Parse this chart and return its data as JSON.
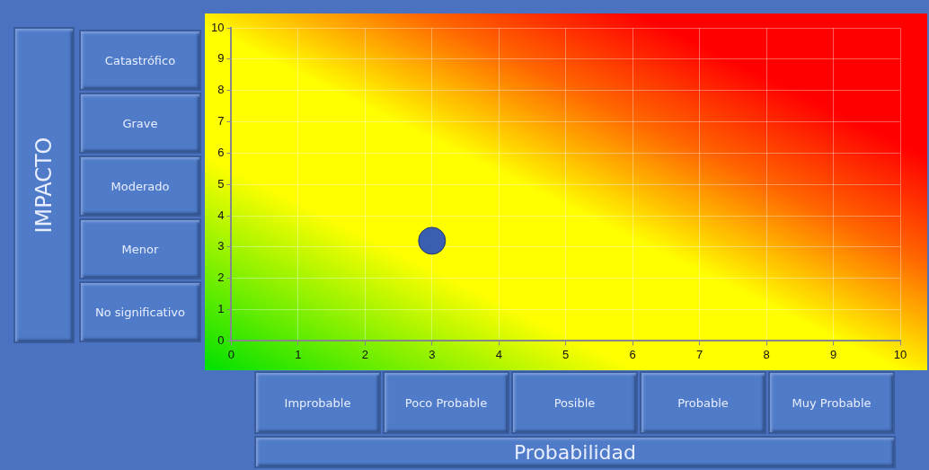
{
  "chart_data": {
    "type": "scatter",
    "xlabel": "Probabilidad",
    "x": [
      3
    ],
    "values": [
      3.2
    ],
    "color": "#3a5fb0",
    "marker": "circle",
    "xlim": [
      0,
      10
    ],
    "xticks": [
      0,
      1,
      2,
      3,
      4,
      5,
      6,
      7,
      8,
      9,
      10
    ],
    "ylim": [
      0,
      10
    ],
    "yticks": [
      0,
      1,
      2,
      3,
      4,
      5,
      6,
      7,
      8,
      9,
      10
    ],
    "grid": true,
    "legend": false,
    "annotations": [
      "Catastrófico",
      "Grave",
      "Moderado",
      "Menor",
      "No significativo",
      "Improbable",
      "Poco Probable",
      "Posible",
      "Probable",
      "Muy Probable",
      "IMPACTO"
    ]
  }
}
